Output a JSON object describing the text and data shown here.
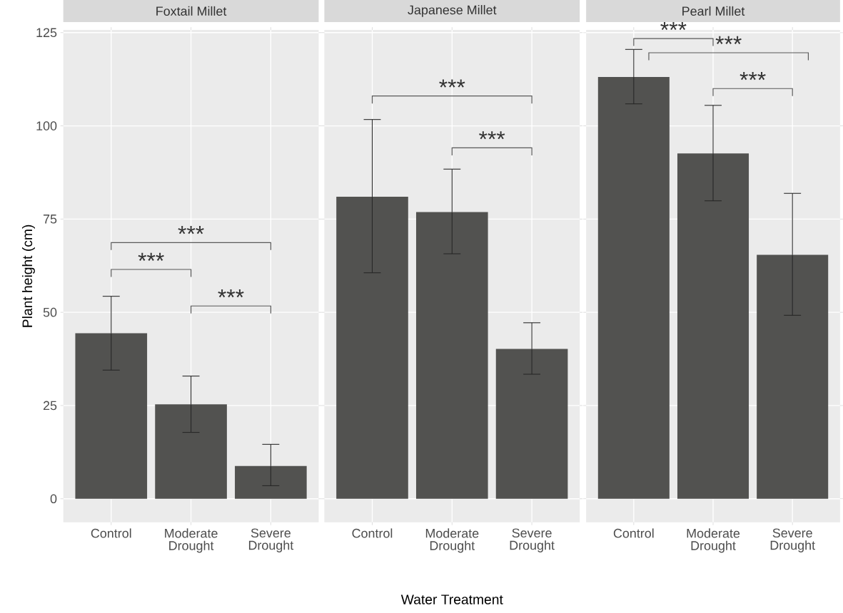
{
  "chart_data": [
    {
      "type": "bar",
      "title": "Foxtail Millet",
      "ylabel": "Plant height (cm)",
      "categories": [
        "Control",
        "Moderate Drought",
        "Severe Drought"
      ],
      "values": [
        44.4,
        25.3,
        8.8
      ],
      "errors": [
        [
          34.5,
          54.3
        ],
        [
          17.8,
          32.9
        ],
        [
          3.5,
          14.6
        ]
      ],
      "color": "#525250",
      "ylim": [
        -6.3,
        125.7
      ],
      "yticks": [
        0,
        25,
        50,
        75,
        100,
        125
      ],
      "grid": true,
      "annotations": [
        "***",
        "***",
        "***"
      ]
    },
    {
      "type": "bar",
      "title": "Japanese Millet",
      "xlabel": "Water Treatment",
      "categories": [
        "Control",
        "Moderate Drought",
        "Severe Drought"
      ],
      "values": [
        81.0,
        76.9,
        40.2
      ],
      "errors": [
        [
          60.6,
          101.7
        ],
        [
          65.7,
          88.4
        ],
        [
          33.4,
          47.2
        ]
      ],
      "color": "#525250",
      "ylim": [
        -6.3,
        125.7
      ],
      "yticks": [
        0,
        25,
        50,
        75,
        100,
        125
      ],
      "grid": true,
      "tick_labels": "x",
      "annotations": [
        "***",
        "***"
      ]
    },
    {
      "type": "bar",
      "title": "Pearl Millet",
      "categories": [
        "Control",
        "Moderate Drought",
        "Severe Drought"
      ],
      "values": [
        113.1,
        92.6,
        65.4
      ],
      "errors": [
        [
          105.9,
          120.5
        ],
        [
          79.9,
          105.5
        ],
        [
          49.2,
          81.9
        ]
      ],
      "color": "#525250",
      "ylim": [
        -6.3,
        125.7
      ],
      "yticks": [
        0,
        25,
        50,
        75,
        100,
        125
      ],
      "grid": true,
      "tick_labels": "x",
      "annotations": [
        "***",
        "***",
        "***"
      ]
    }
  ]
}
